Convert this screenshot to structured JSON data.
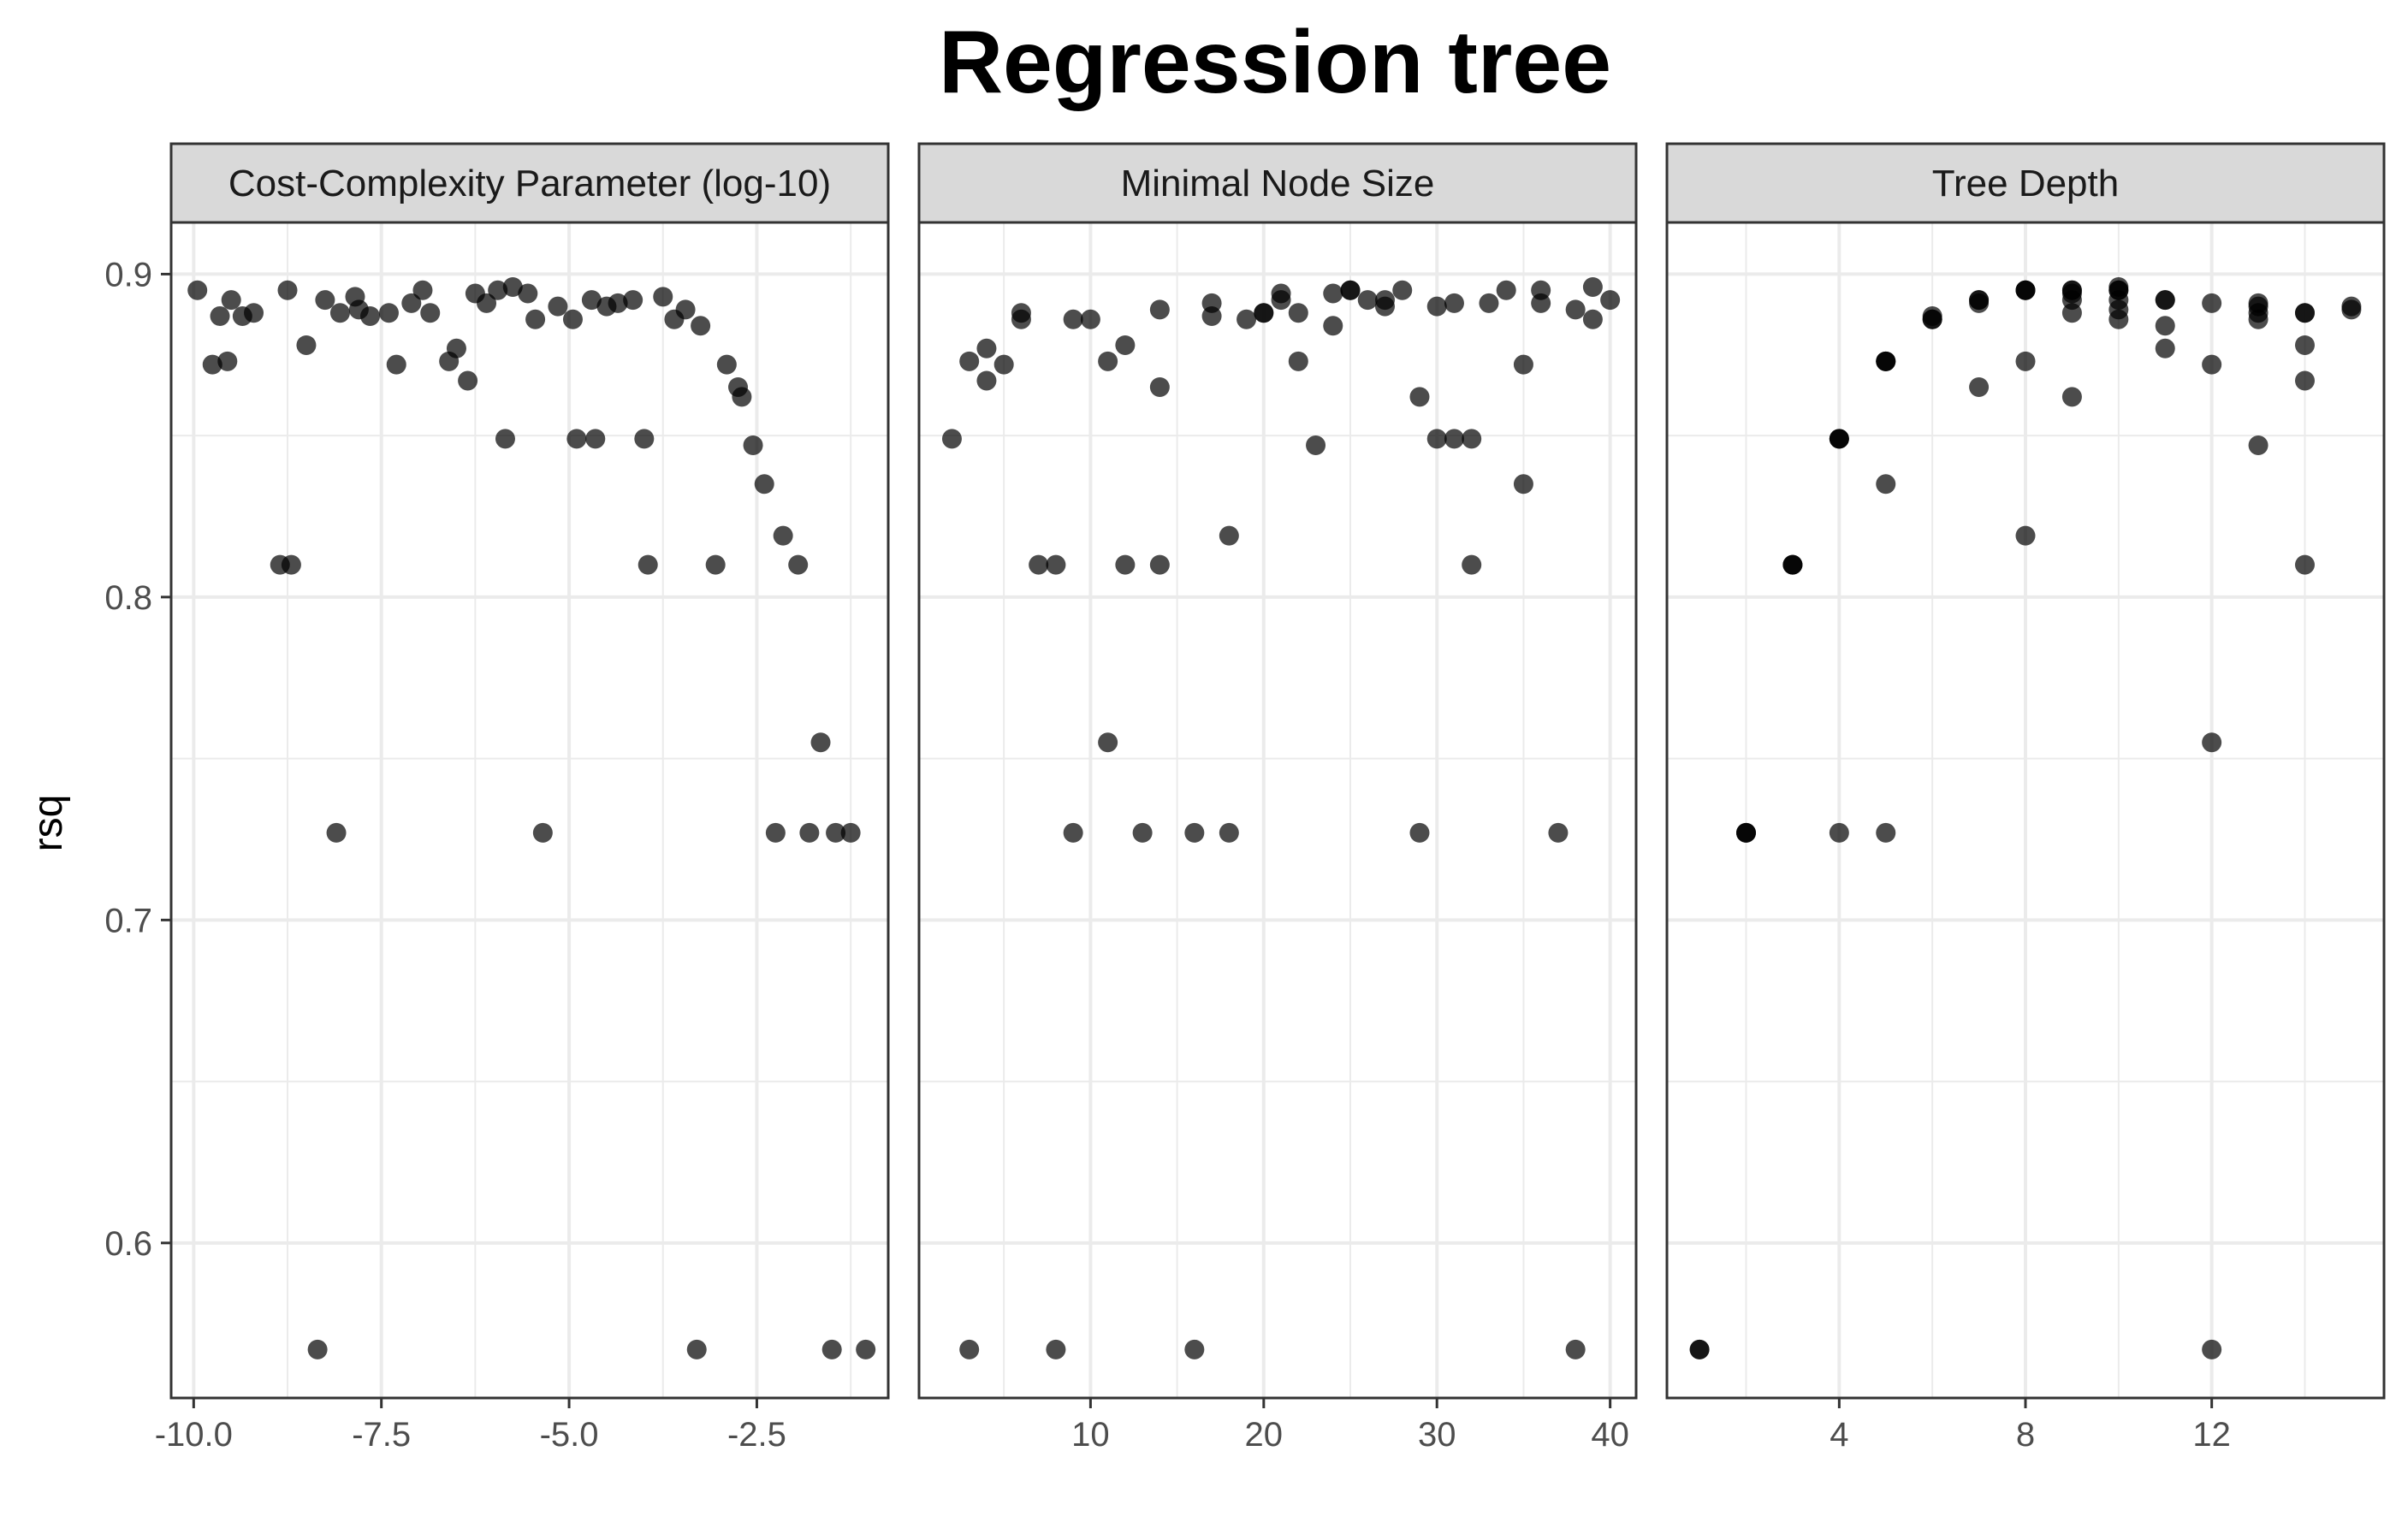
{
  "chart_data": {
    "type": "scatter",
    "title": "Regression tree",
    "ylabel": "rsq",
    "ylim": [
      0.552,
      0.916
    ],
    "y_ticks": [
      0.6,
      0.7,
      0.8,
      0.9
    ],
    "y_tick_labels": [
      "0.6",
      "0.7",
      "0.8",
      "0.9"
    ],
    "grid": true,
    "panels": [
      {
        "strip": "Cost-Complexity Parameter (log-10)",
        "xlim": [
          -10.3,
          -0.75
        ],
        "x_ticks": [
          -10.0,
          -7.5,
          -5.0,
          -2.5
        ],
        "x_tick_labels": [
          "-10.0",
          "-7.5",
          "-5.0",
          "-2.5"
        ],
        "points": [
          [
            -9.95,
            0.895
          ],
          [
            -9.75,
            0.872
          ],
          [
            -9.65,
            0.887
          ],
          [
            -9.55,
            0.873
          ],
          [
            -9.5,
            0.892
          ],
          [
            -9.35,
            0.887
          ],
          [
            -9.2,
            0.888
          ],
          [
            -8.85,
            0.81
          ],
          [
            -8.7,
            0.81
          ],
          [
            -8.75,
            0.895
          ],
          [
            -8.5,
            0.878
          ],
          [
            -8.35,
            0.567
          ],
          [
            -8.25,
            0.892
          ],
          [
            -8.1,
            0.727
          ],
          [
            -8.05,
            0.888
          ],
          [
            -7.85,
            0.893
          ],
          [
            -7.8,
            0.889
          ],
          [
            -7.65,
            0.887
          ],
          [
            -7.4,
            0.888
          ],
          [
            -7.3,
            0.872
          ],
          [
            -7.1,
            0.891
          ],
          [
            -6.95,
            0.895
          ],
          [
            -6.85,
            0.888
          ],
          [
            -6.6,
            0.873
          ],
          [
            -6.5,
            0.877
          ],
          [
            -6.35,
            0.867
          ],
          [
            -6.25,
            0.894
          ],
          [
            -6.1,
            0.891
          ],
          [
            -5.95,
            0.895
          ],
          [
            -5.85,
            0.849
          ],
          [
            -5.75,
            0.896
          ],
          [
            -5.55,
            0.894
          ],
          [
            -5.45,
            0.886
          ],
          [
            -5.35,
            0.727
          ],
          [
            -5.15,
            0.89
          ],
          [
            -4.95,
            0.886
          ],
          [
            -4.9,
            0.849
          ],
          [
            -4.7,
            0.892
          ],
          [
            -4.65,
            0.849
          ],
          [
            -4.5,
            0.89
          ],
          [
            -4.35,
            0.891
          ],
          [
            -4.15,
            0.892
          ],
          [
            -4.0,
            0.849
          ],
          [
            -3.95,
            0.81
          ],
          [
            -3.75,
            0.893
          ],
          [
            -3.6,
            0.886
          ],
          [
            -3.45,
            0.889
          ],
          [
            -3.3,
            0.567
          ],
          [
            -3.25,
            0.884
          ],
          [
            -3.05,
            0.81
          ],
          [
            -2.9,
            0.872
          ],
          [
            -2.75,
            0.865
          ],
          [
            -2.7,
            0.862
          ],
          [
            -2.55,
            0.847
          ],
          [
            -2.4,
            0.835
          ],
          [
            -2.25,
            0.727
          ],
          [
            -2.15,
            0.819
          ],
          [
            -1.95,
            0.81
          ],
          [
            -1.8,
            0.727
          ],
          [
            -1.65,
            0.755
          ],
          [
            -1.5,
            0.567
          ],
          [
            -1.45,
            0.727
          ],
          [
            -1.25,
            0.727
          ],
          [
            -1.05,
            0.567
          ]
        ]
      },
      {
        "strip": "Minimal Node Size",
        "xlim": [
          0.1,
          41.5
        ],
        "x_ticks": [
          10,
          20,
          30,
          40
        ],
        "x_tick_labels": [
          "10",
          "20",
          "30",
          "40"
        ],
        "points": [
          [
            2,
            0.849
          ],
          [
            3,
            0.873
          ],
          [
            3,
            0.567
          ],
          [
            4,
            0.877
          ],
          [
            4,
            0.867
          ],
          [
            5,
            0.872
          ],
          [
            6,
            0.888
          ],
          [
            6,
            0.886
          ],
          [
            7,
            0.81
          ],
          [
            8,
            0.81
          ],
          [
            8,
            0.567
          ],
          [
            9,
            0.886
          ],
          [
            9,
            0.727
          ],
          [
            10,
            0.886
          ],
          [
            11,
            0.755
          ],
          [
            11,
            0.873
          ],
          [
            12,
            0.81
          ],
          [
            12,
            0.878
          ],
          [
            13,
            0.727
          ],
          [
            14,
            0.865
          ],
          [
            14,
            0.81
          ],
          [
            14,
            0.889
          ],
          [
            16,
            0.727
          ],
          [
            16,
            0.567
          ],
          [
            17,
            0.891
          ],
          [
            17,
            0.887
          ],
          [
            18,
            0.819
          ],
          [
            18,
            0.727
          ],
          [
            19,
            0.886
          ],
          [
            20,
            0.888
          ],
          [
            20,
            0.888
          ],
          [
            21,
            0.894
          ],
          [
            21,
            0.892
          ],
          [
            22,
            0.873
          ],
          [
            22,
            0.888
          ],
          [
            23,
            0.847
          ],
          [
            24,
            0.894
          ],
          [
            24,
            0.884
          ],
          [
            25,
            0.895
          ],
          [
            25,
            0.895
          ],
          [
            26,
            0.892
          ],
          [
            27,
            0.89
          ],
          [
            27,
            0.892
          ],
          [
            28,
            0.895
          ],
          [
            29,
            0.862
          ],
          [
            29,
            0.727
          ],
          [
            30,
            0.89
          ],
          [
            30,
            0.849
          ],
          [
            31,
            0.849
          ],
          [
            31,
            0.891
          ],
          [
            32,
            0.849
          ],
          [
            32,
            0.81
          ],
          [
            33,
            0.891
          ],
          [
            34,
            0.895
          ],
          [
            35,
            0.872
          ],
          [
            35,
            0.835
          ],
          [
            36,
            0.895
          ],
          [
            36,
            0.891
          ],
          [
            37,
            0.727
          ],
          [
            38,
            0.889
          ],
          [
            38,
            0.567
          ],
          [
            39,
            0.896
          ],
          [
            39,
            0.886
          ],
          [
            40,
            0.892
          ]
        ]
      },
      {
        "strip": "Tree Depth",
        "xlim": [
          0.3,
          15.7
        ],
        "x_ticks": [
          4,
          8,
          12
        ],
        "x_tick_labels": [
          "4",
          "8",
          "12"
        ],
        "points": [
          [
            1,
            0.567
          ],
          [
            1,
            0.567
          ],
          [
            2,
            0.727
          ],
          [
            2,
            0.727
          ],
          [
            2,
            0.727
          ],
          [
            3,
            0.81
          ],
          [
            3,
            0.81
          ],
          [
            3,
            0.81
          ],
          [
            4,
            0.849
          ],
          [
            4,
            0.849
          ],
          [
            4,
            0.849
          ],
          [
            4,
            0.727
          ],
          [
            5,
            0.873
          ],
          [
            5,
            0.873
          ],
          [
            5,
            0.873
          ],
          [
            5,
            0.835
          ],
          [
            5,
            0.727
          ],
          [
            6,
            0.886
          ],
          [
            6,
            0.887
          ],
          [
            6,
            0.886
          ],
          [
            7,
            0.892
          ],
          [
            7,
            0.891
          ],
          [
            7,
            0.892
          ],
          [
            7,
            0.865
          ],
          [
            8,
            0.895
          ],
          [
            8,
            0.895
          ],
          [
            8,
            0.895
          ],
          [
            8,
            0.873
          ],
          [
            8,
            0.819
          ],
          [
            9,
            0.895
          ],
          [
            9,
            0.894
          ],
          [
            9,
            0.895
          ],
          [
            9,
            0.892
          ],
          [
            9,
            0.888
          ],
          [
            9,
            0.862
          ],
          [
            10,
            0.895
          ],
          [
            10,
            0.896
          ],
          [
            10,
            0.895
          ],
          [
            10,
            0.892
          ],
          [
            10,
            0.889
          ],
          [
            10,
            0.886
          ],
          [
            11,
            0.892
          ],
          [
            11,
            0.892
          ],
          [
            11,
            0.884
          ],
          [
            11,
            0.877
          ],
          [
            12,
            0.891
          ],
          [
            12,
            0.872
          ],
          [
            12,
            0.755
          ],
          [
            12,
            0.567
          ],
          [
            13,
            0.891
          ],
          [
            13,
            0.89
          ],
          [
            13,
            0.888
          ],
          [
            13,
            0.886
          ],
          [
            13,
            0.847
          ],
          [
            14,
            0.888
          ],
          [
            14,
            0.888
          ],
          [
            14,
            0.878
          ],
          [
            14,
            0.867
          ],
          [
            14,
            0.81
          ],
          [
            15,
            0.89
          ],
          [
            15,
            0.889
          ]
        ]
      }
    ]
  }
}
